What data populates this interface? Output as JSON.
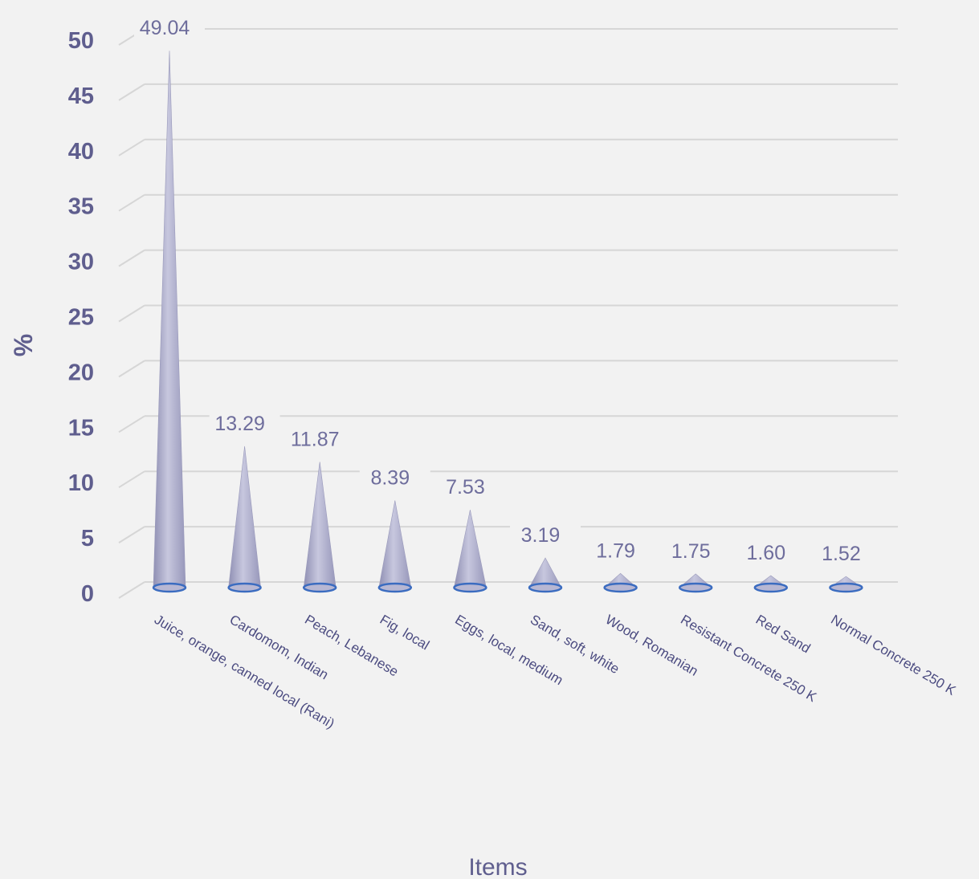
{
  "chart_data": {
    "type": "bar",
    "categories": [
      "Juice, orange, canned local (Rani)",
      "Cardomom, Indian",
      "Peach, Lebanese",
      "Fig, local",
      "Eggs, local, medium",
      "Sand, soft, white",
      "Wood, Romanian",
      "Resistant Concrete 250 K",
      "Red Sand",
      "Normal Concrete 250 K"
    ],
    "values": [
      49.04,
      13.29,
      11.87,
      8.39,
      7.53,
      3.19,
      1.79,
      1.75,
      1.6,
      1.52
    ],
    "value_labels": [
      "49.04",
      "13.29",
      "11.87",
      "8.39",
      "7.53",
      "3.19",
      "1.79",
      "1.75",
      "1.60",
      "1.52"
    ],
    "title": "",
    "xlabel": "Items",
    "ylabel": "%",
    "ylim": [
      0,
      50
    ],
    "yticks": [
      0,
      5,
      10,
      15,
      20,
      25,
      30,
      35,
      40,
      45,
      50
    ],
    "grid": true,
    "legend": "none",
    "bar_shape": "cone",
    "colors": {
      "cone": "#a9a9c9",
      "cone_base_ring": "#3b6cc0",
      "gridline": "#d6d6d6",
      "text": "#5f5e8e"
    }
  }
}
